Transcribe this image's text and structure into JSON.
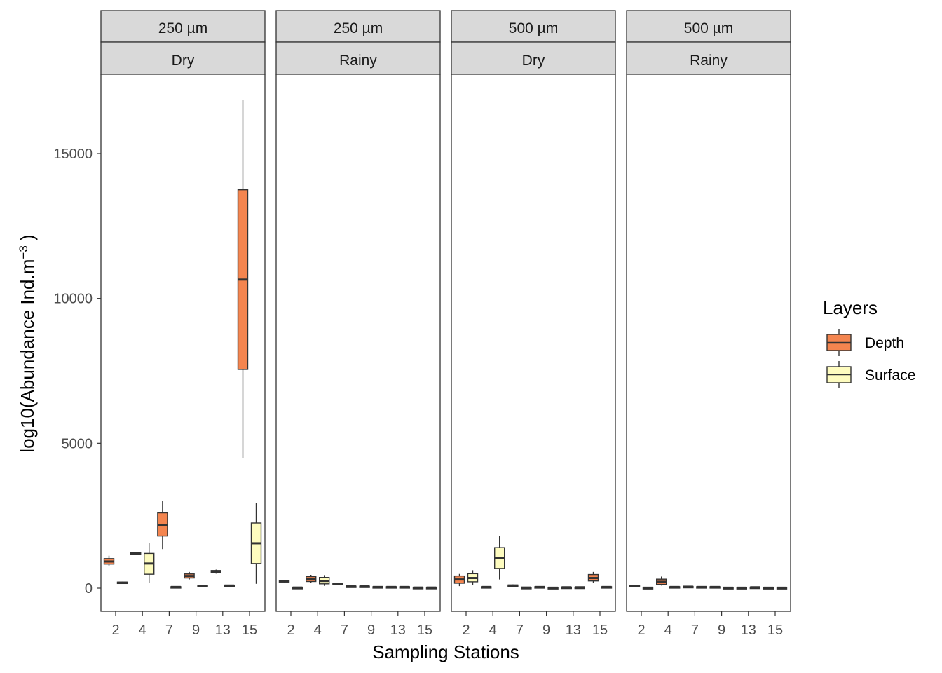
{
  "chart_data": {
    "type": "boxplot",
    "xlabel": "Sampling Stations",
    "ylabel_main": "log10(Abundance Ind.m",
    "ylabel_sup": "−3",
    "ylabel_close": " )",
    "ylim": [
      -800,
      17600
    ],
    "yticks": [
      0,
      5000,
      10000,
      15000
    ],
    "categories": [
      "2",
      "4",
      "7",
      "9",
      "13",
      "15"
    ],
    "legend": {
      "title": "Layers",
      "position": "right",
      "entries": [
        {
          "name": "Depth",
          "color": "#f4854f"
        },
        {
          "name": "Surface",
          "color": "#fefcbf"
        }
      ]
    },
    "panels": [
      {
        "strip_top": "250 µm",
        "strip_bottom": "Dry",
        "boxes": [
          {
            "station": "2",
            "layer": "Depth",
            "min": 750,
            "q1": 830,
            "median": 920,
            "q3": 1020,
            "max": 1120
          },
          {
            "station": "2",
            "layer": "Surface",
            "min": 150,
            "q1": 170,
            "median": 190,
            "q3": 210,
            "max": 230
          },
          {
            "station": "4",
            "layer": "Depth",
            "min": 1170,
            "q1": 1180,
            "median": 1200,
            "q3": 1220,
            "max": 1230
          },
          {
            "station": "4",
            "layer": "Surface",
            "min": 170,
            "q1": 480,
            "median": 850,
            "q3": 1200,
            "max": 1550
          },
          {
            "station": "7",
            "layer": "Depth",
            "min": 1350,
            "q1": 1800,
            "median": 2180,
            "q3": 2600,
            "max": 3000
          },
          {
            "station": "7",
            "layer": "Surface",
            "min": 20,
            "q1": 30,
            "median": 40,
            "q3": 50,
            "max": 60
          },
          {
            "station": "9",
            "layer": "Depth",
            "min": 300,
            "q1": 350,
            "median": 420,
            "q3": 490,
            "max": 560
          },
          {
            "station": "9",
            "layer": "Surface",
            "min": 60,
            "q1": 70,
            "median": 80,
            "q3": 90,
            "max": 100
          },
          {
            "station": "13",
            "layer": "Depth",
            "min": 500,
            "q1": 540,
            "median": 580,
            "q3": 610,
            "max": 640
          },
          {
            "station": "13",
            "layer": "Surface",
            "min": 70,
            "q1": 80,
            "median": 90,
            "q3": 100,
            "max": 110
          },
          {
            "station": "15",
            "layer": "Depth",
            "min": 4500,
            "q1": 7550,
            "median": 10650,
            "q3": 13750,
            "max": 16850
          },
          {
            "station": "15",
            "layer": "Surface",
            "min": 150,
            "q1": 850,
            "median": 1550,
            "q3": 2250,
            "max": 2950
          }
        ]
      },
      {
        "strip_top": "250 µm",
        "strip_bottom": "Rainy",
        "boxes": [
          {
            "station": "2",
            "layer": "Depth",
            "min": 200,
            "q1": 220,
            "median": 240,
            "q3": 260,
            "max": 280
          },
          {
            "station": "2",
            "layer": "Surface",
            "min": 10,
            "q1": 15,
            "median": 20,
            "q3": 25,
            "max": 30
          },
          {
            "station": "4",
            "layer": "Depth",
            "min": 180,
            "q1": 230,
            "median": 310,
            "q3": 400,
            "max": 460
          },
          {
            "station": "4",
            "layer": "Surface",
            "min": 80,
            "q1": 150,
            "median": 250,
            "q3": 370,
            "max": 450
          },
          {
            "station": "7",
            "layer": "Depth",
            "min": 120,
            "q1": 130,
            "median": 150,
            "q3": 165,
            "max": 180
          },
          {
            "station": "7",
            "layer": "Surface",
            "min": 40,
            "q1": 50,
            "median": 60,
            "q3": 70,
            "max": 80
          },
          {
            "station": "9",
            "layer": "Depth",
            "min": 40,
            "q1": 50,
            "median": 60,
            "q3": 70,
            "max": 80
          },
          {
            "station": "9",
            "layer": "Surface",
            "min": 20,
            "q1": 30,
            "median": 40,
            "q3": 50,
            "max": 60
          },
          {
            "station": "13",
            "layer": "Depth",
            "min": 20,
            "q1": 30,
            "median": 40,
            "q3": 50,
            "max": 60
          },
          {
            "station": "13",
            "layer": "Surface",
            "min": 20,
            "q1": 30,
            "median": 40,
            "q3": 50,
            "max": 60
          },
          {
            "station": "15",
            "layer": "Depth",
            "min": 10,
            "q1": 15,
            "median": 20,
            "q3": 25,
            "max": 30
          },
          {
            "station": "15",
            "layer": "Surface",
            "min": 10,
            "q1": 15,
            "median": 20,
            "q3": 25,
            "max": 30
          }
        ]
      },
      {
        "strip_top": "500 µm",
        "strip_bottom": "Dry",
        "boxes": [
          {
            "station": "2",
            "layer": "Depth",
            "min": 70,
            "q1": 170,
            "median": 300,
            "q3": 420,
            "max": 490
          },
          {
            "station": "2",
            "layer": "Surface",
            "min": 100,
            "q1": 220,
            "median": 350,
            "q3": 500,
            "max": 620
          },
          {
            "station": "4",
            "layer": "Depth",
            "min": 20,
            "q1": 30,
            "median": 40,
            "q3": 50,
            "max": 60
          },
          {
            "station": "4",
            "layer": "Surface",
            "min": 300,
            "q1": 680,
            "median": 1050,
            "q3": 1400,
            "max": 1800
          },
          {
            "station": "7",
            "layer": "Depth",
            "min": 60,
            "q1": 75,
            "median": 90,
            "q3": 110,
            "max": 130
          },
          {
            "station": "7",
            "layer": "Surface",
            "min": 10,
            "q1": 15,
            "median": 20,
            "q3": 25,
            "max": 30
          },
          {
            "station": "9",
            "layer": "Depth",
            "min": 20,
            "q1": 30,
            "median": 40,
            "q3": 50,
            "max": 60
          },
          {
            "station": "9",
            "layer": "Surface",
            "min": 5,
            "q1": 10,
            "median": 15,
            "q3": 20,
            "max": 25
          },
          {
            "station": "13",
            "layer": "Depth",
            "min": 20,
            "q1": 25,
            "median": 30,
            "q3": 35,
            "max": 40
          },
          {
            "station": "13",
            "layer": "Surface",
            "min": 20,
            "q1": 25,
            "median": 30,
            "q3": 35,
            "max": 40
          },
          {
            "station": "15",
            "layer": "Depth",
            "min": 180,
            "q1": 250,
            "median": 350,
            "q3": 470,
            "max": 560
          },
          {
            "station": "15",
            "layer": "Surface",
            "min": 20,
            "q1": 30,
            "median": 40,
            "q3": 50,
            "max": 60
          }
        ]
      },
      {
        "strip_top": "500 µm",
        "strip_bottom": "Rainy",
        "boxes": [
          {
            "station": "2",
            "layer": "Depth",
            "min": 50,
            "q1": 65,
            "median": 80,
            "q3": 95,
            "max": 110
          },
          {
            "station": "2",
            "layer": "Surface",
            "min": 5,
            "q1": 10,
            "median": 15,
            "q3": 20,
            "max": 25
          },
          {
            "station": "4",
            "layer": "Depth",
            "min": 90,
            "q1": 130,
            "median": 220,
            "q3": 310,
            "max": 400
          },
          {
            "station": "4",
            "layer": "Surface",
            "min": 20,
            "q1": 30,
            "median": 40,
            "q3": 50,
            "max": 60
          },
          {
            "station": "7",
            "layer": "Depth",
            "min": 30,
            "q1": 40,
            "median": 50,
            "q3": 60,
            "max": 70
          },
          {
            "station": "7",
            "layer": "Surface",
            "min": 20,
            "q1": 30,
            "median": 40,
            "q3": 50,
            "max": 60
          },
          {
            "station": "9",
            "layer": "Depth",
            "min": 20,
            "q1": 30,
            "median": 40,
            "q3": 50,
            "max": 60
          },
          {
            "station": "9",
            "layer": "Surface",
            "min": 5,
            "q1": 10,
            "median": 15,
            "q3": 20,
            "max": 25
          },
          {
            "station": "13",
            "layer": "Depth",
            "min": 5,
            "q1": 10,
            "median": 15,
            "q3": 20,
            "max": 25
          },
          {
            "station": "13",
            "layer": "Surface",
            "min": 20,
            "q1": 25,
            "median": 30,
            "q3": 35,
            "max": 40
          },
          {
            "station": "15",
            "layer": "Depth",
            "min": 5,
            "q1": 10,
            "median": 15,
            "q3": 20,
            "max": 25
          },
          {
            "station": "15",
            "layer": "Surface",
            "min": 5,
            "q1": 10,
            "median": 15,
            "q3": 20,
            "max": 25
          }
        ]
      }
    ]
  }
}
